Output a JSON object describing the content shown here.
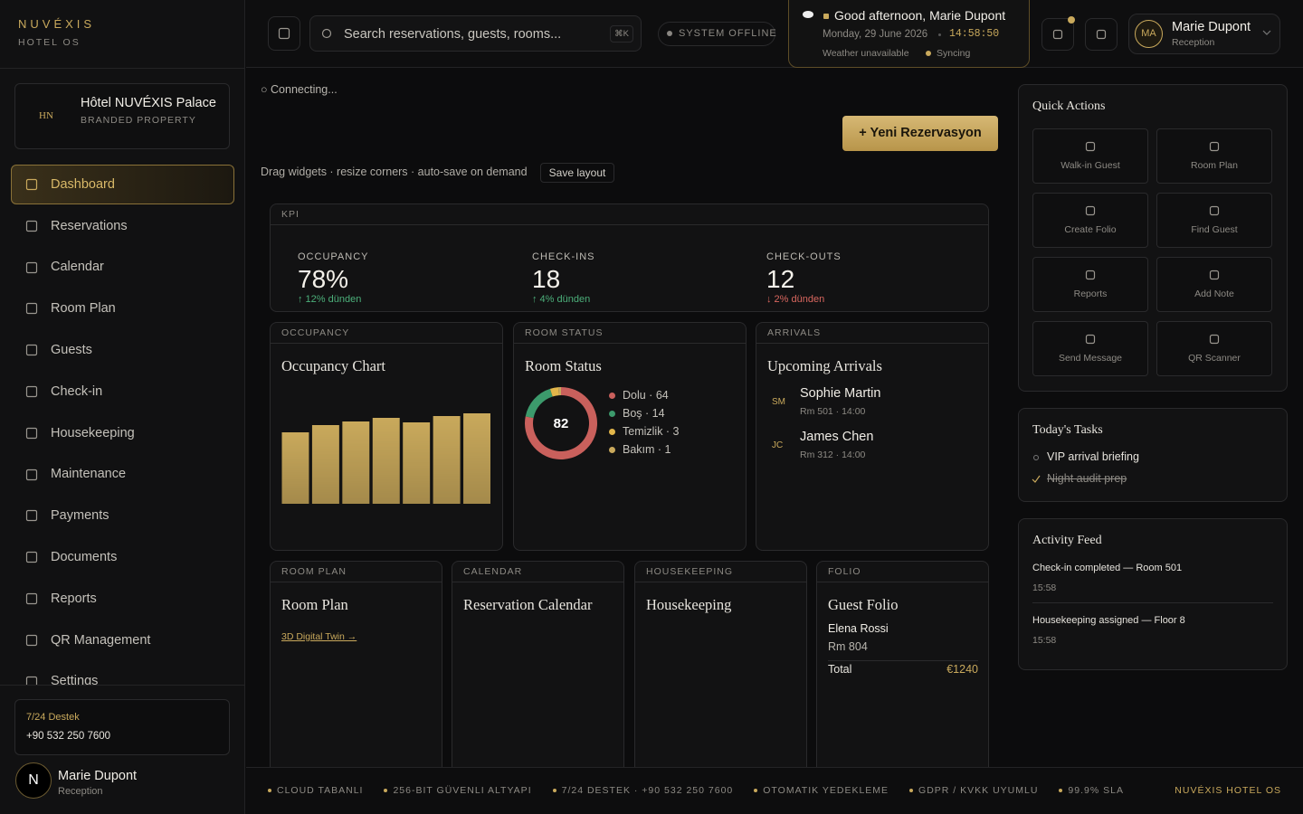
{
  "brand": {
    "name": "NUVÉXIS",
    "subtitle": "HOTEL OS"
  },
  "property": {
    "initials": "HN",
    "name": "Hôtel NUVÉXIS Palace",
    "tag": "BRANDED PROPERTY"
  },
  "nav": [
    "Dashboard",
    "Reservations",
    "Calendar",
    "Room Plan",
    "Guests",
    "Check-in",
    "Housekeeping",
    "Maintenance",
    "Payments",
    "Documents",
    "Reports",
    "QR Management",
    "Settings"
  ],
  "support": {
    "label": "7/24 Destek",
    "phone": "+90 532 250 7600"
  },
  "sidebar_user": {
    "initial": "N",
    "name": "Marie Dupont",
    "role": "Reception"
  },
  "topbar": {
    "search": "Search reservations, guests, rooms...",
    "shortcut": "⌘K",
    "status": "SYSTEM OFFLINE",
    "greeting": "Good afternoon, Marie Dupont",
    "date": "Monday, 29 June 2026",
    "time": "14:58:50",
    "weather": "Weather unavailable",
    "sync": "Syncing",
    "user": {
      "initials": "MA",
      "name": "Marie Dupont",
      "role": "Reception"
    }
  },
  "connection": "○ Connecting...",
  "new_button": "+ Yeni Rezervasyon",
  "layout_hint": "Drag widgets · resize corners · auto-save on demand",
  "save_button": "Save layout",
  "kpi": {
    "header": "KPI",
    "items": [
      {
        "label": "OCCUPANCY",
        "value": "78%",
        "delta": "↑ 12% dünden",
        "trend": "up"
      },
      {
        "label": "CHECK-INS",
        "value": "18",
        "delta": "↑ 4% dünden",
        "trend": "up"
      },
      {
        "label": "CHECK-OUTS",
        "value": "12",
        "delta": "↓ 2% dünden",
        "trend": "down"
      }
    ]
  },
  "widgets": {
    "occupancy": {
      "header": "OCCUPANCY"
    },
    "room_status": {
      "header": "ROOM STATUS"
    },
    "arrivals": {
      "header": "ARRIVALS",
      "title": "Upcoming Arrivals",
      "guests": [
        {
          "initials": "SM",
          "name": "Sophie Martin",
          "detail": "Rm 501 · 14:00"
        },
        {
          "initials": "JC",
          "name": "James Chen",
          "detail": "Rm 312 · 14:00"
        }
      ]
    },
    "room_plan": {
      "header": "ROOM PLAN",
      "title": "Room Plan",
      "link": "3D Digital Twin →"
    },
    "calendar": {
      "header": "CALENDAR",
      "title": "Reservation Calendar"
    },
    "housekeeping": {
      "header": "HOUSEKEEPING",
      "title": "Housekeeping"
    },
    "folio": {
      "header": "FOLIO",
      "title": "Guest Folio",
      "guest": "Elena Rossi",
      "room": "Rm 804",
      "total_label": "Total",
      "total": "€1240"
    }
  },
  "chart_data": [
    {
      "type": "bar",
      "title": "Occupancy Chart",
      "values": [
        79,
        87,
        91,
        95,
        90,
        97,
        100
      ],
      "ylim": [
        0,
        100
      ],
      "color": "#c9a95c"
    },
    {
      "type": "pie",
      "title": "Room Status",
      "total": 82,
      "values": [
        64,
        14,
        3,
        1
      ],
      "value_labels": [
        "Dolu · 64",
        "Boş · 14",
        "Temizlik · 3",
        "Bakım · 1"
      ],
      "colors": [
        "#c9605c",
        "#3c9a6c",
        "#e2b64a",
        "#c9a95c"
      ]
    }
  ],
  "quick_actions": {
    "title": "Quick Actions",
    "items": [
      "Walk-in Guest",
      "Room Plan",
      "Create Folio",
      "Find Guest",
      "Reports",
      "Add Note",
      "Send Message",
      "QR Scanner"
    ]
  },
  "tasks": {
    "title": "Today's Tasks",
    "items": [
      {
        "text": "VIP arrival briefing",
        "done": false
      },
      {
        "text": "Night audit prep",
        "done": true
      }
    ]
  },
  "activity": {
    "title": "Activity Feed",
    "items": [
      {
        "text": "Check-in completed — Room 501",
        "time": "15:58"
      },
      {
        "text": "Housekeeping assigned — Floor 8",
        "time": "15:58"
      }
    ]
  },
  "footer": {
    "items": [
      "CLOUD TABANLI",
      "256-BIT GÜVENLI ALTYAPI",
      "7/24 DESTEK · +90 532 250 7600",
      "OTOMATIK YEDEKLEME",
      "GDPR / KVKK UYUMLU",
      "99.9% SLA"
    ],
    "brand": "NUVÉXIS HOTEL OS"
  }
}
